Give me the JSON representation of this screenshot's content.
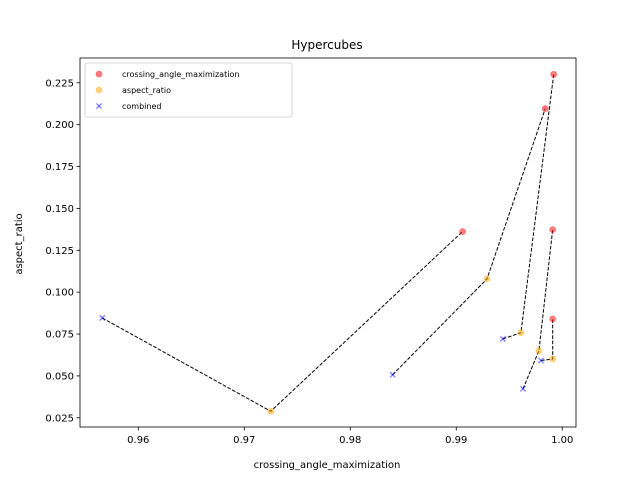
{
  "chart_data": {
    "type": "scatter",
    "title": "Hypercubes",
    "xlabel": "crossing_angle_maximization",
    "ylabel": "aspect_ratio",
    "xlim": [
      0.9545,
      1.0013
    ],
    "ylim": [
      0.0195,
      0.2398
    ],
    "xticks": [
      0.96,
      0.97,
      0.98,
      0.99,
      1.0
    ],
    "xtick_labels": [
      "0.96",
      "0.97",
      "0.98",
      "0.99",
      "1.00"
    ],
    "yticks": [
      0.025,
      0.05,
      0.075,
      0.1,
      0.125,
      0.15,
      0.175,
      0.2,
      0.225
    ],
    "ytick_labels": [
      "0.025",
      "0.050",
      "0.075",
      "0.100",
      "0.125",
      "0.150",
      "0.175",
      "0.200",
      "0.225"
    ],
    "grid": false,
    "legend_position": "top-left",
    "series": [
      {
        "name": "crossing_angle_maximization",
        "marker": "circle",
        "color": "#ff0000",
        "points": [
          [
            0.9906,
            0.1362
          ],
          [
            0.9984,
            0.2096
          ],
          [
            0.9992,
            0.2301
          ],
          [
            0.9991,
            0.1373
          ],
          [
            0.9991,
            0.084
          ]
        ]
      },
      {
        "name": "aspect_ratio",
        "marker": "circle",
        "color": "#ffa500",
        "points": [
          [
            0.9725,
            0.0289
          ],
          [
            0.9929,
            0.1079
          ],
          [
            0.9961,
            0.0758
          ],
          [
            0.9978,
            0.065
          ],
          [
            0.9991,
            0.0601
          ]
        ]
      },
      {
        "name": "combined",
        "marker": "x",
        "color": "#0000ff",
        "points": [
          [
            0.9566,
            0.0846
          ],
          [
            0.984,
            0.0507
          ],
          [
            0.9944,
            0.0721
          ],
          [
            0.9963,
            0.0423
          ],
          [
            0.998,
            0.0592
          ]
        ]
      }
    ],
    "connections": [
      [
        [
          0.9566,
          0.0846
        ],
        [
          0.9725,
          0.0289
        ],
        [
          0.9906,
          0.1362
        ]
      ],
      [
        [
          0.984,
          0.0507
        ],
        [
          0.9929,
          0.1079
        ],
        [
          0.9984,
          0.2096
        ]
      ],
      [
        [
          0.9944,
          0.0721
        ],
        [
          0.9961,
          0.0758
        ],
        [
          0.9992,
          0.2301
        ]
      ],
      [
        [
          0.9963,
          0.0423
        ],
        [
          0.9978,
          0.065
        ],
        [
          0.9991,
          0.1373
        ]
      ],
      [
        [
          0.998,
          0.0592
        ],
        [
          0.9991,
          0.0601
        ],
        [
          0.9991,
          0.084
        ]
      ]
    ]
  }
}
